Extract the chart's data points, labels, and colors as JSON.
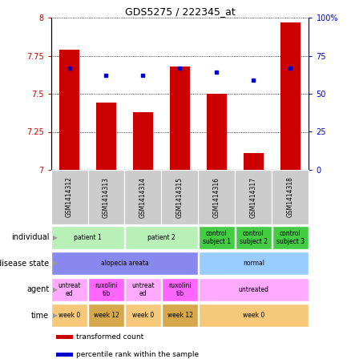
{
  "title": "GDS5275 / 222345_at",
  "samples": [
    "GSM1414312",
    "GSM1414313",
    "GSM1414314",
    "GSM1414315",
    "GSM1414316",
    "GSM1414317",
    "GSM1414318"
  ],
  "red_values": [
    7.79,
    7.44,
    7.38,
    7.68,
    7.5,
    7.11,
    7.97
  ],
  "blue_values": [
    67,
    62,
    62,
    67,
    64,
    59,
    67
  ],
  "ylim_left": [
    7.0,
    8.0
  ],
  "ylim_right": [
    0,
    100
  ],
  "yticks_left": [
    7.0,
    7.25,
    7.5,
    7.75,
    8.0
  ],
  "yticks_right": [
    0,
    25,
    50,
    75,
    100
  ],
  "ytick_labels_left": [
    "7",
    "7.25",
    "7.5",
    "7.75",
    "8"
  ],
  "ytick_labels_right": [
    "0",
    "25",
    "50",
    "75",
    "100%"
  ],
  "annotation_rows": [
    {
      "label": "individual",
      "cells": [
        {
          "text": "patient 1",
          "span": 2,
          "color": "#b8f0b8"
        },
        {
          "text": "patient 2",
          "span": 2,
          "color": "#b8f0b8"
        },
        {
          "text": "control\nsubject 1",
          "span": 1,
          "color": "#44cc44"
        },
        {
          "text": "control\nsubject 2",
          "span": 1,
          "color": "#44cc44"
        },
        {
          "text": "control\nsubject 3",
          "span": 1,
          "color": "#44cc44"
        }
      ]
    },
    {
      "label": "disease state",
      "cells": [
        {
          "text": "alopecia areata",
          "span": 4,
          "color": "#8888ee"
        },
        {
          "text": "normal",
          "span": 3,
          "color": "#99ccff"
        }
      ]
    },
    {
      "label": "agent",
      "cells": [
        {
          "text": "untreat\ned",
          "span": 1,
          "color": "#ffaaff"
        },
        {
          "text": "ruxolini\ntib",
          "span": 1,
          "color": "#ff66ff"
        },
        {
          "text": "untreat\ned",
          "span": 1,
          "color": "#ffaaff"
        },
        {
          "text": "ruxolini\ntib",
          "span": 1,
          "color": "#ff66ff"
        },
        {
          "text": "untreated",
          "span": 3,
          "color": "#ffaaff"
        }
      ]
    },
    {
      "label": "time",
      "cells": [
        {
          "text": "week 0",
          "span": 1,
          "color": "#f5c87a"
        },
        {
          "text": "week 12",
          "span": 1,
          "color": "#d4a84b"
        },
        {
          "text": "week 0",
          "span": 1,
          "color": "#f5c87a"
        },
        {
          "text": "week 12",
          "span": 1,
          "color": "#d4a84b"
        },
        {
          "text": "week 0",
          "span": 3,
          "color": "#f5c87a"
        }
      ]
    }
  ],
  "legend": [
    {
      "color": "#cc0000",
      "label": "transformed count"
    },
    {
      "color": "#0000cc",
      "label": "percentile rank within the sample"
    }
  ],
  "bar_color": "#cc0000",
  "dot_color": "#0000cc",
  "background_color": "#ffffff",
  "bar_width": 0.55,
  "left_axis_color": "#cc0000",
  "right_axis_color": "#0000cc",
  "sample_label_bg": "#cccccc",
  "sample_label_border": "#888888"
}
